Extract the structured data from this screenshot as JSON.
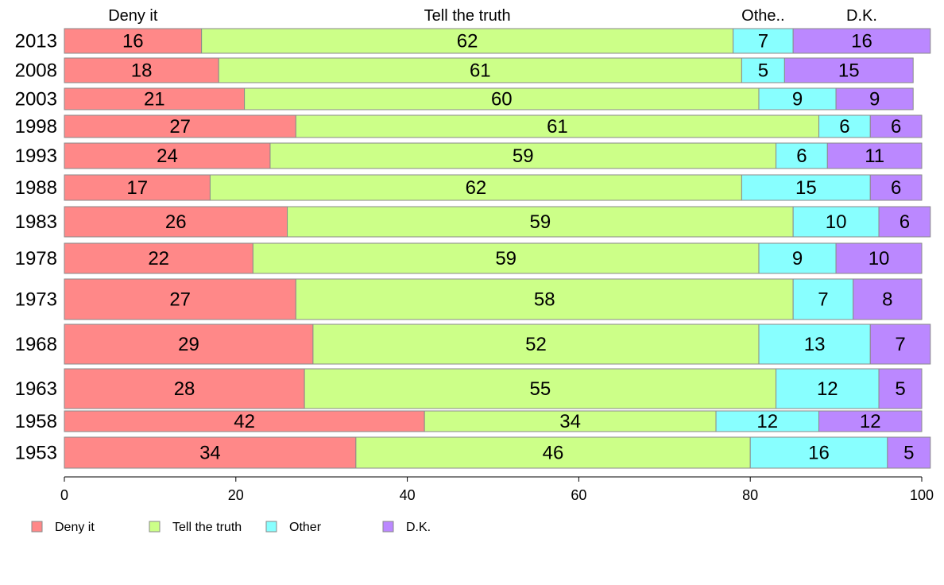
{
  "chart_data": {
    "type": "bar",
    "orientation": "horizontal",
    "stacked": true,
    "column_headers": [
      "Deny it",
      "Tell the truth",
      "Othe..",
      "D.K."
    ],
    "categories": [
      "2013",
      "2008",
      "2003",
      "1998",
      "1993",
      "1988",
      "1983",
      "1978",
      "1973",
      "1968",
      "1963",
      "1958",
      "1953"
    ],
    "series": [
      {
        "name": "Deny it",
        "color": "#ff8888",
        "values": [
          16,
          18,
          21,
          27,
          24,
          17,
          26,
          22,
          27,
          29,
          28,
          42,
          34
        ]
      },
      {
        "name": "Tell the truth",
        "color": "#ccff88",
        "values": [
          62,
          61,
          60,
          61,
          59,
          62,
          59,
          59,
          58,
          52,
          55,
          34,
          46
        ]
      },
      {
        "name": "Other",
        "color": "#88ffff",
        "values": [
          7,
          5,
          9,
          6,
          6,
          15,
          10,
          9,
          7,
          13,
          12,
          12,
          16
        ]
      },
      {
        "name": "D.K.",
        "color": "#bb88ff",
        "values": [
          16,
          15,
          9,
          6,
          11,
          6,
          6,
          10,
          8,
          7,
          5,
          12,
          5
        ]
      }
    ],
    "xlim": [
      0,
      100
    ],
    "xticks": [
      "0",
      "20",
      "40",
      "60",
      "80",
      "100"
    ],
    "legend_position": "bottom-left",
    "grid": false
  }
}
